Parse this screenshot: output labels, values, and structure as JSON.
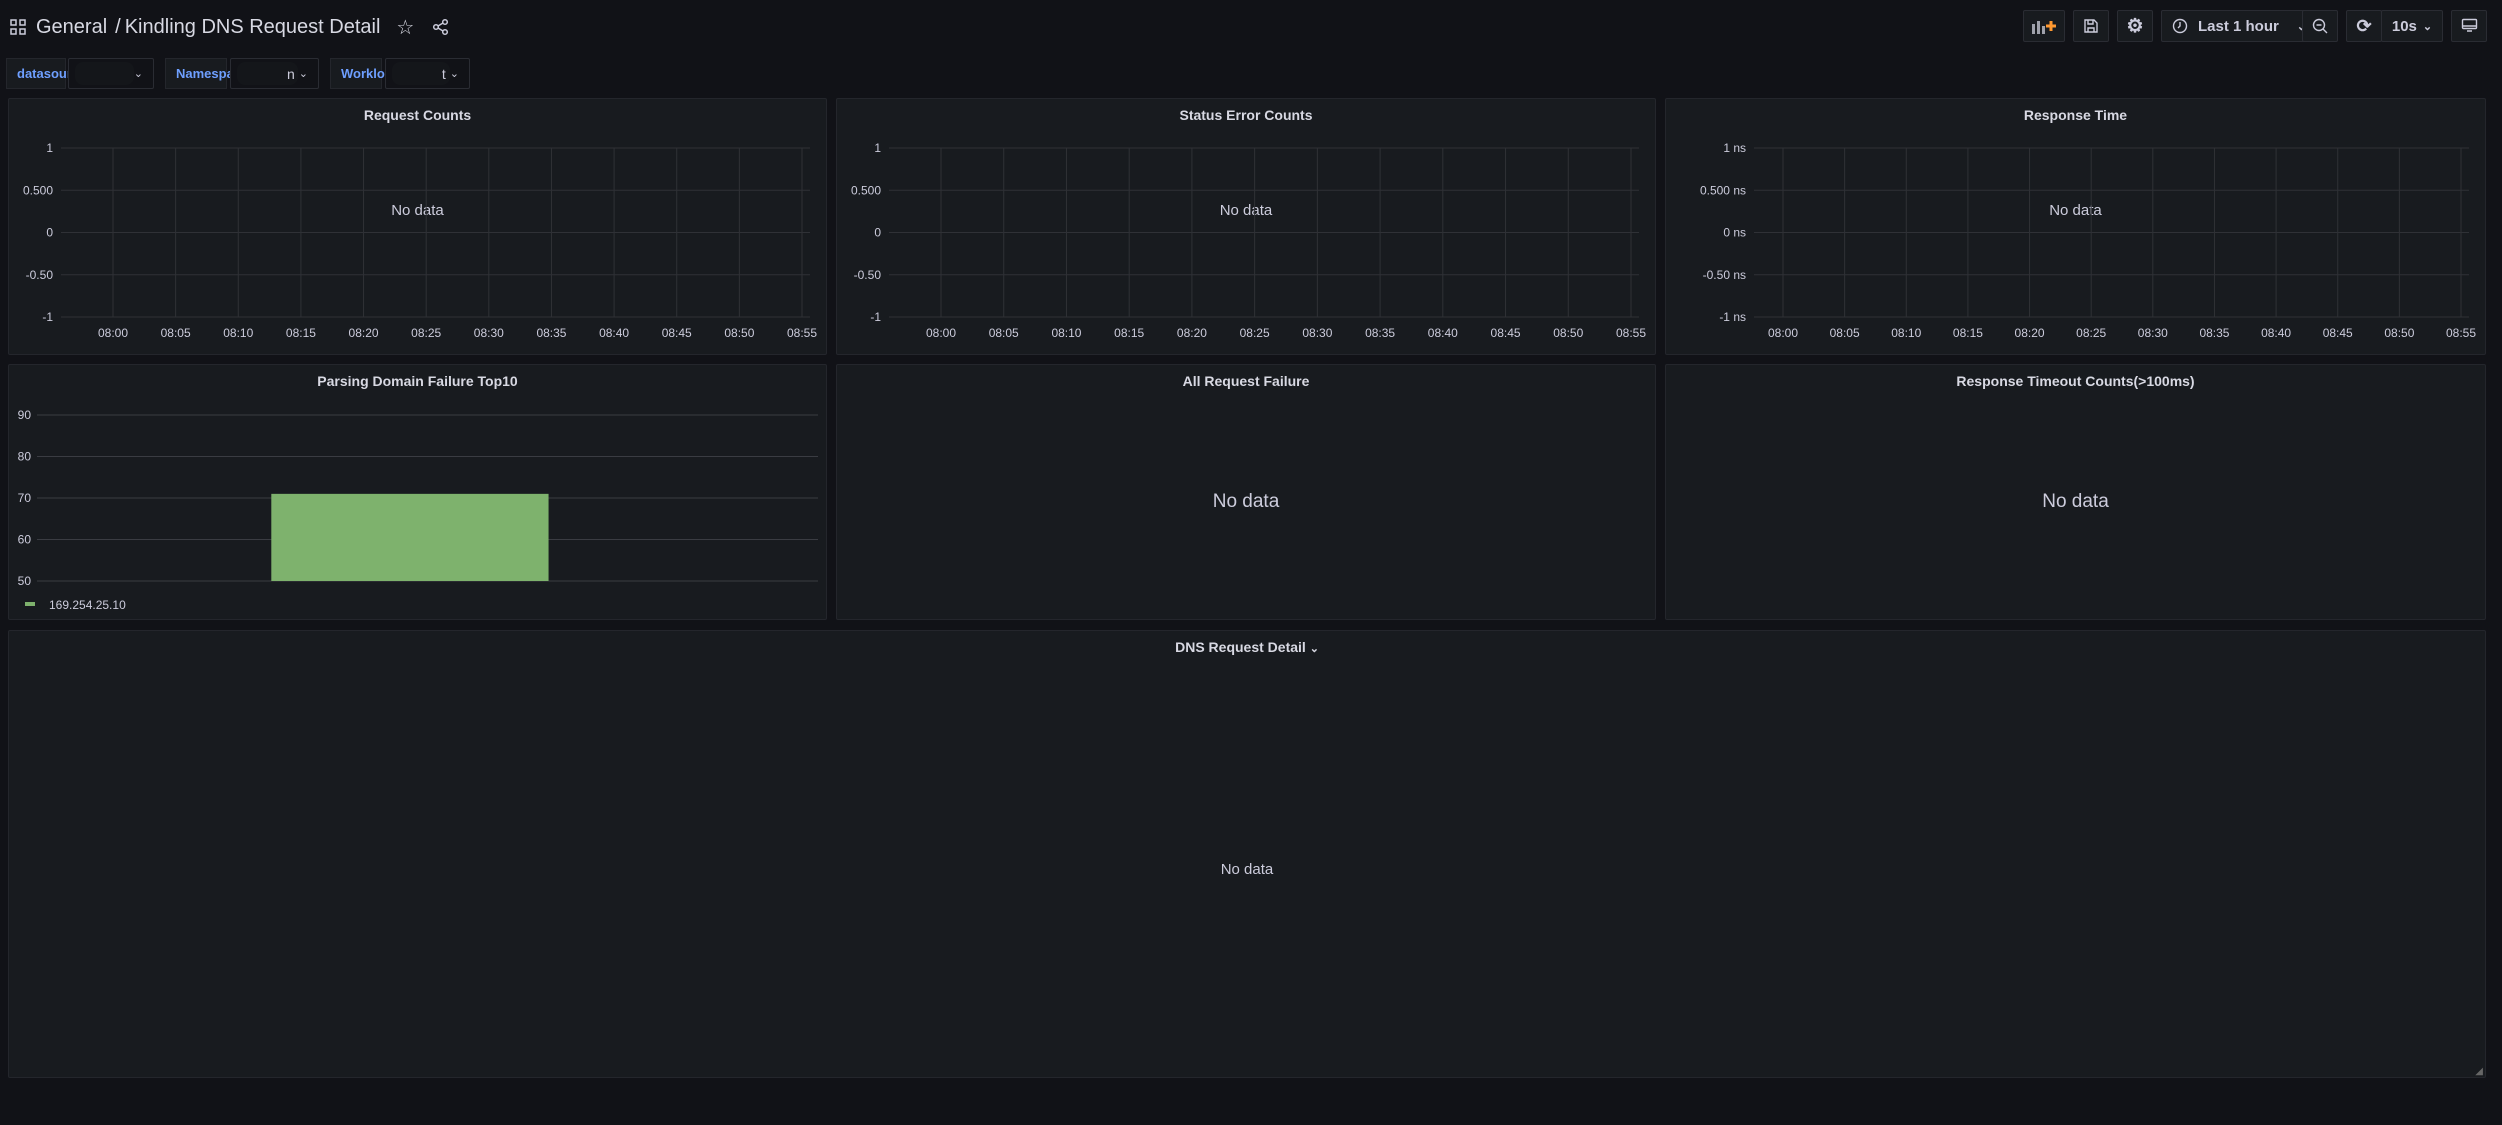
{
  "header": {
    "folder": "General",
    "separator": "/",
    "dashboard_title": "Kindling DNS Request Detail",
    "icons": [
      "apps-icon",
      "star-icon",
      "share-icon"
    ]
  },
  "toolbar": {
    "add_panel": "add-panel-icon",
    "save": "save-icon",
    "settings": "gear-icon",
    "time_range": "Last 1 hour",
    "zoom_out": "zoom-out-icon",
    "refresh": "refresh-icon",
    "refresh_interval": "10s",
    "tv_mode": "monitor-icon",
    "accent": "#ff9830"
  },
  "variables": [
    {
      "label": "datasource",
      "value": ""
    },
    {
      "label": "Namespace",
      "value": "n"
    },
    {
      "label": "Workload",
      "value": "t"
    }
  ],
  "no_data": "No data",
  "chart_data": [
    {
      "type": "line",
      "title": "Request Counts",
      "yticks": [
        "1",
        "0.500",
        "0",
        "-0.50",
        "-1"
      ],
      "xticks": [
        "08:00",
        "08:05",
        "08:10",
        "08:15",
        "08:20",
        "08:25",
        "08:30",
        "08:35",
        "08:40",
        "08:45",
        "08:50",
        "08:55"
      ],
      "series": [],
      "grid": true
    },
    {
      "type": "line",
      "title": "Status Error Counts",
      "yticks": [
        "1",
        "0.500",
        "0",
        "-0.50",
        "-1"
      ],
      "xticks": [
        "08:00",
        "08:05",
        "08:10",
        "08:15",
        "08:20",
        "08:25",
        "08:30",
        "08:35",
        "08:40",
        "08:45",
        "08:50",
        "08:55"
      ],
      "series": [],
      "grid": true
    },
    {
      "type": "line",
      "title": "Response Time",
      "yticks": [
        "1 ns",
        "0.500 ns",
        "0 ns",
        "-0.50 ns",
        "-1 ns"
      ],
      "xticks": [
        "08:00",
        "08:05",
        "08:10",
        "08:15",
        "08:20",
        "08:25",
        "08:30",
        "08:35",
        "08:40",
        "08:45",
        "08:50",
        "08:55"
      ],
      "series": [],
      "grid": true
    },
    {
      "type": "bar",
      "title": "Parsing Domain Failure Top10",
      "yticks": [
        "90",
        "80",
        "70",
        "60",
        "50"
      ],
      "ylim": [
        50,
        90
      ],
      "categories": [
        "169.254.25.10"
      ],
      "series": [
        {
          "name": "169.254.25.10",
          "values": [
            71
          ]
        }
      ],
      "color": "#7eb26d",
      "legend": "bottom-left",
      "grid": true
    },
    {
      "type": "table",
      "title": "All Request Failure",
      "series": []
    },
    {
      "type": "table",
      "title": "Response Timeout Counts(>100ms)",
      "series": []
    },
    {
      "type": "table",
      "title": "DNS Request Detail",
      "series": []
    }
  ]
}
